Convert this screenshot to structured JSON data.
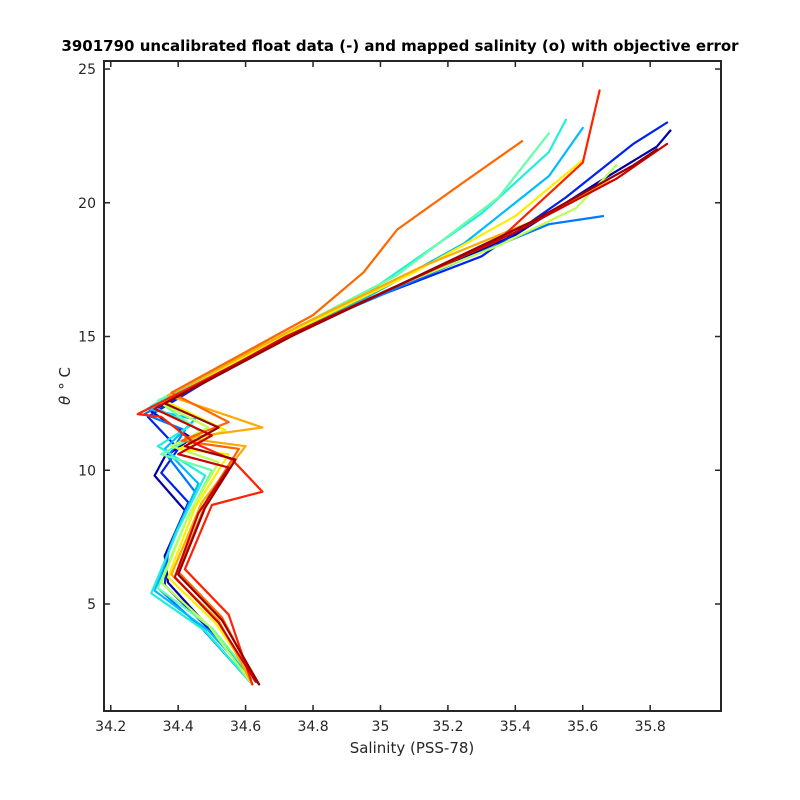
{
  "chart_data": {
    "type": "line",
    "title": "3901790 uncalibrated float data (-) and mapped salinity (o) with objective error",
    "xlabel": "Salinity (PSS-78)",
    "ylabel_symbol": "θ",
    "ylabel_unit": "° C",
    "xlim": [
      34.18,
      36.01
    ],
    "ylim": [
      1.0,
      25.3
    ],
    "x_ticks": [
      34.2,
      34.4,
      34.6,
      34.8,
      35.0,
      35.2,
      35.4,
      35.6,
      35.8
    ],
    "x_tick_labels": [
      "34.2",
      "34.4",
      "34.6",
      "34.8",
      "35",
      "35.2",
      "35.4",
      "35.6",
      "35.8"
    ],
    "y_ticks": [
      5,
      10,
      15,
      20,
      25
    ],
    "y_tick_labels": [
      "5",
      "10",
      "15",
      "20",
      "25"
    ],
    "grid": false,
    "legend": "none",
    "colormap": "jet",
    "colors": [
      "#0000aa",
      "#0022ee",
      "#0077ff",
      "#00bbff",
      "#22eedd",
      "#66ffaa",
      "#bbff55",
      "#ffee00",
      "#ffaa00",
      "#ff6600",
      "#ff2200",
      "#cc0000",
      "#990000"
    ],
    "series": [
      {
        "color_index": 0,
        "points": [
          [
            34.64,
            2.0
          ],
          [
            34.5,
            4.0
          ],
          [
            34.37,
            5.8
          ],
          [
            34.36,
            6.8
          ],
          [
            34.42,
            8.5
          ],
          [
            34.33,
            9.8
          ],
          [
            34.36,
            10.5
          ],
          [
            34.44,
            11.2
          ],
          [
            34.32,
            12.2
          ],
          [
            34.7,
            14.8
          ],
          [
            35.0,
            16.6
          ],
          [
            35.4,
            18.8
          ],
          [
            35.65,
            20.8
          ],
          [
            35.82,
            22.1
          ],
          [
            35.86,
            22.7
          ]
        ]
      },
      {
        "color_index": 1,
        "points": [
          [
            34.63,
            2.1
          ],
          [
            34.48,
            4.2
          ],
          [
            34.36,
            5.7
          ],
          [
            34.37,
            7.0
          ],
          [
            34.43,
            8.8
          ],
          [
            34.35,
            9.9
          ],
          [
            34.4,
            10.8
          ],
          [
            34.31,
            12.0
          ],
          [
            34.65,
            14.6
          ],
          [
            34.95,
            16.3
          ],
          [
            35.3,
            18.0
          ],
          [
            35.55,
            20.2
          ],
          [
            35.75,
            22.2
          ],
          [
            35.85,
            23.0
          ]
        ]
      },
      {
        "color_index": 2,
        "points": [
          [
            34.62,
            2.0
          ],
          [
            34.47,
            4.1
          ],
          [
            34.34,
            5.6
          ],
          [
            34.38,
            7.3
          ],
          [
            34.45,
            9.2
          ],
          [
            34.37,
            10.5
          ],
          [
            34.42,
            11.5
          ],
          [
            34.3,
            12.1
          ],
          [
            34.6,
            14.3
          ],
          [
            34.9,
            16.0
          ],
          [
            35.25,
            17.9
          ],
          [
            35.5,
            19.2
          ],
          [
            35.66,
            19.5
          ]
        ]
      },
      {
        "color_index": 3,
        "points": [
          [
            34.63,
            2.1
          ],
          [
            34.49,
            4.0
          ],
          [
            34.33,
            5.5
          ],
          [
            34.39,
            7.6
          ],
          [
            34.46,
            9.5
          ],
          [
            34.36,
            10.8
          ],
          [
            34.45,
            11.9
          ],
          [
            34.31,
            12.3
          ],
          [
            34.62,
            14.5
          ],
          [
            34.95,
            16.4
          ],
          [
            35.25,
            18.5
          ],
          [
            35.5,
            21.0
          ],
          [
            35.6,
            22.8
          ]
        ]
      },
      {
        "color_index": 4,
        "points": [
          [
            34.62,
            2.0
          ],
          [
            34.48,
            4.0
          ],
          [
            34.32,
            5.4
          ],
          [
            34.4,
            7.8
          ],
          [
            34.48,
            9.8
          ],
          [
            34.34,
            10.9
          ],
          [
            34.44,
            11.7
          ],
          [
            34.32,
            12.4
          ],
          [
            34.66,
            14.7
          ],
          [
            34.98,
            16.8
          ],
          [
            35.3,
            19.6
          ],
          [
            35.5,
            21.9
          ],
          [
            35.55,
            23.1
          ]
        ]
      },
      {
        "color_index": 5,
        "points": [
          [
            34.63,
            2.1
          ],
          [
            34.5,
            4.1
          ],
          [
            34.34,
            5.6
          ],
          [
            34.42,
            8.0
          ],
          [
            34.5,
            10.0
          ],
          [
            34.35,
            10.6
          ],
          [
            34.47,
            11.4
          ],
          [
            34.34,
            12.6
          ],
          [
            34.7,
            15.0
          ],
          [
            35.05,
            17.3
          ],
          [
            35.35,
            20.2
          ],
          [
            35.5,
            22.6
          ]
        ]
      },
      {
        "color_index": 6,
        "points": [
          [
            34.62,
            2.0
          ],
          [
            34.49,
            4.2
          ],
          [
            34.35,
            5.8
          ],
          [
            34.43,
            8.3
          ],
          [
            34.52,
            10.3
          ],
          [
            34.38,
            10.9
          ],
          [
            34.49,
            11.6
          ],
          [
            34.35,
            12.5
          ],
          [
            34.72,
            15.0
          ],
          [
            35.05,
            16.9
          ],
          [
            35.35,
            18.4
          ],
          [
            35.58,
            19.8
          ],
          [
            35.7,
            21.4
          ]
        ]
      },
      {
        "color_index": 7,
        "points": [
          [
            34.63,
            2.1
          ],
          [
            34.51,
            4.3
          ],
          [
            34.37,
            6.0
          ],
          [
            34.45,
            8.6
          ],
          [
            34.55,
            10.6
          ],
          [
            34.4,
            10.8
          ],
          [
            34.54,
            11.5
          ],
          [
            34.36,
            12.6
          ],
          [
            34.74,
            15.2
          ],
          [
            35.1,
            17.4
          ],
          [
            35.4,
            19.5
          ],
          [
            35.6,
            21.6
          ]
        ]
      },
      {
        "color_index": 8,
        "points": [
          [
            34.62,
            2.0
          ],
          [
            34.52,
            4.4
          ],
          [
            34.38,
            6.1
          ],
          [
            34.47,
            8.8
          ],
          [
            34.6,
            10.9
          ],
          [
            34.42,
            11.2
          ],
          [
            34.65,
            11.6
          ],
          [
            34.37,
            12.8
          ],
          [
            34.76,
            15.4
          ],
          [
            35.12,
            17.6
          ],
          [
            35.45,
            19.3
          ],
          [
            35.68,
            20.8
          ]
        ]
      },
      {
        "color_index": 9,
        "points": [
          [
            34.63,
            2.1
          ],
          [
            34.53,
            4.5
          ],
          [
            34.4,
            6.2
          ],
          [
            34.49,
            9.0
          ],
          [
            34.58,
            10.8
          ],
          [
            34.41,
            11.1
          ],
          [
            34.55,
            11.8
          ],
          [
            34.38,
            12.9
          ],
          [
            34.8,
            15.8
          ],
          [
            34.95,
            17.4
          ],
          [
            35.05,
            19.0
          ],
          [
            35.25,
            20.8
          ],
          [
            35.42,
            22.3
          ]
        ]
      },
      {
        "color_index": 10,
        "points": [
          [
            34.62,
            2.0
          ],
          [
            34.55,
            4.6
          ],
          [
            34.42,
            6.3
          ],
          [
            34.5,
            8.7
          ],
          [
            34.65,
            9.2
          ],
          [
            34.56,
            10.4
          ],
          [
            34.45,
            11.0
          ],
          [
            34.35,
            12.0
          ],
          [
            34.28,
            12.1
          ],
          [
            34.7,
            14.8
          ],
          [
            35.0,
            16.6
          ],
          [
            35.35,
            18.6
          ],
          [
            35.6,
            21.5
          ],
          [
            35.65,
            24.2
          ]
        ]
      },
      {
        "color_index": 11,
        "points": [
          [
            34.63,
            2.1
          ],
          [
            34.52,
            4.3
          ],
          [
            34.39,
            6.0
          ],
          [
            34.46,
            8.4
          ],
          [
            34.55,
            10.1
          ],
          [
            34.4,
            10.6
          ],
          [
            34.5,
            11.3
          ],
          [
            34.33,
            12.3
          ],
          [
            34.72,
            15.0
          ],
          [
            35.05,
            16.9
          ],
          [
            35.4,
            18.9
          ],
          [
            35.7,
            20.9
          ],
          [
            35.85,
            22.2
          ]
        ]
      },
      {
        "color_index": 12,
        "points": [
          [
            34.64,
            2.0
          ],
          [
            34.53,
            4.4
          ],
          [
            34.4,
            6.1
          ],
          [
            34.48,
            8.6
          ],
          [
            34.57,
            10.4
          ],
          [
            34.42,
            10.9
          ],
          [
            34.52,
            11.6
          ],
          [
            34.36,
            12.5
          ],
          [
            34.75,
            15.1
          ],
          [
            35.1,
            17.2
          ],
          [
            35.45,
            19.3
          ],
          [
            35.75,
            21.4
          ],
          [
            35.82,
            22.0
          ]
        ]
      }
    ]
  }
}
